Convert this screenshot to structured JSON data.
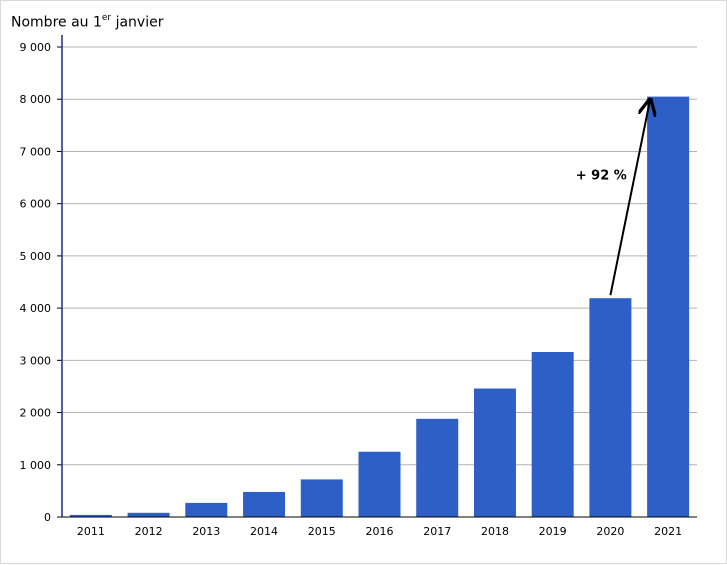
{
  "chart_data": {
    "type": "bar",
    "title": "",
    "ylabel_main": "Nombre au 1",
    "ylabel_sup": "er",
    "ylabel_rest": " janvier",
    "xlabel": "",
    "categories": [
      "2011",
      "2012",
      "2013",
      "2014",
      "2015",
      "2016",
      "2017",
      "2018",
      "2019",
      "2020",
      "2021"
    ],
    "values": [
      40,
      80,
      270,
      480,
      720,
      1250,
      1880,
      2460,
      3160,
      4190,
      8050
    ],
    "ylim": [
      0,
      9000
    ],
    "yticks": [
      0,
      1000,
      2000,
      3000,
      4000,
      5000,
      6000,
      7000,
      8000,
      9000
    ],
    "ytick_labels": [
      "0",
      "1 000",
      "2 000",
      "3 000",
      "4 000",
      "5 000",
      "6 000",
      "7 000",
      "8 000",
      "9 000"
    ],
    "grid": true,
    "bar_color": "#2e5fc7",
    "annotation": {
      "text": "+ 92 %",
      "from_category": "2020",
      "to_category": "2021"
    }
  }
}
